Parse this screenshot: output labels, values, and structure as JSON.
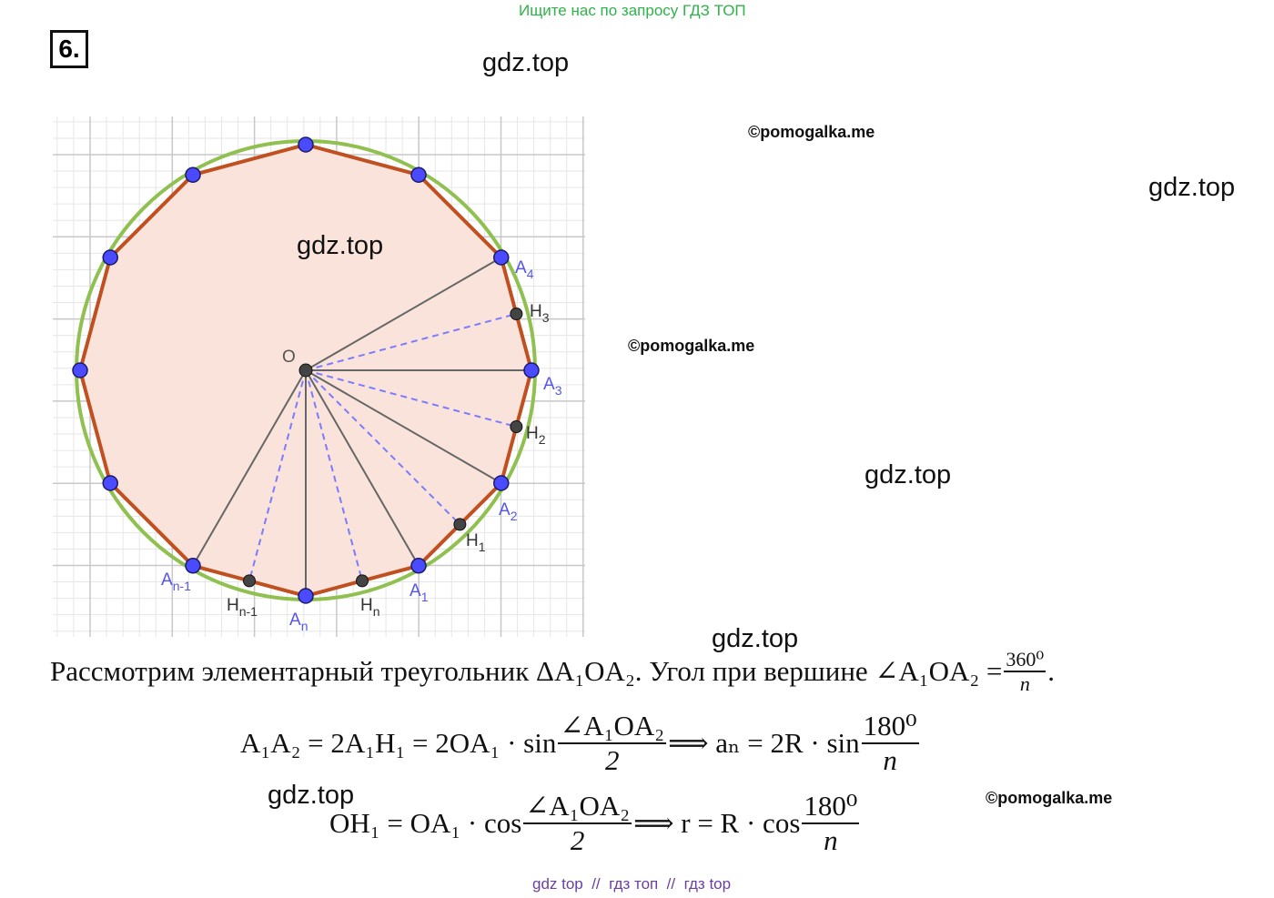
{
  "banner": "Ищите нас по запросу ГДЗ ТОП",
  "problem_number": "6.",
  "watermarks": {
    "gdz": [
      "gdz.top",
      "gdz.top",
      "gdz.top",
      "gdz.top",
      "gdz.top",
      "gdz.top"
    ],
    "pomogalka": [
      "©pomogalka.me",
      "©pomogalka.me",
      "©pomogalka.me"
    ]
  },
  "diagram_labels": [
    {
      "base": "O",
      "sub": ""
    },
    {
      "base": "A",
      "sub": "4"
    },
    {
      "base": "H",
      "sub": "3"
    },
    {
      "base": "A",
      "sub": "3"
    },
    {
      "base": "H",
      "sub": "2"
    },
    {
      "base": "A",
      "sub": "2"
    },
    {
      "base": "H",
      "sub": "1"
    },
    {
      "base": "A",
      "sub": "1"
    },
    {
      "base": "H",
      "sub": "n"
    },
    {
      "base": "A",
      "sub": "n"
    },
    {
      "base": "H",
      "sub": "n-1"
    },
    {
      "base": "A",
      "sub": "n-1"
    }
  ],
  "paragraph": {
    "parts": [
      "Рассмотрим элементарный треугольник ΔA₁OA₂. Угол при вершине ∠A₁OA₂ =",
      {
        "num": "360⁰",
        "den": "n"
      },
      "."
    ]
  },
  "formulas": [
    {
      "parts": [
        "A₁A₂ = 2A₁H₁ = 2OA₁ · sin",
        {
          "num": "∠A₁OA₂",
          "den": "2"
        },
        "⟹ aₙ = 2R · sin",
        {
          "num": "180⁰",
          "den": "n"
        }
      ]
    },
    {
      "parts": [
        "OH₁ = OA₁ · cos",
        {
          "num": "∠A₁OA₂",
          "den": "2"
        },
        "⟹ r = R · cos",
        {
          "num": "180⁰",
          "den": "n"
        }
      ]
    }
  ],
  "footer": "gdz top  //  гдз топ  //  гдз top"
}
